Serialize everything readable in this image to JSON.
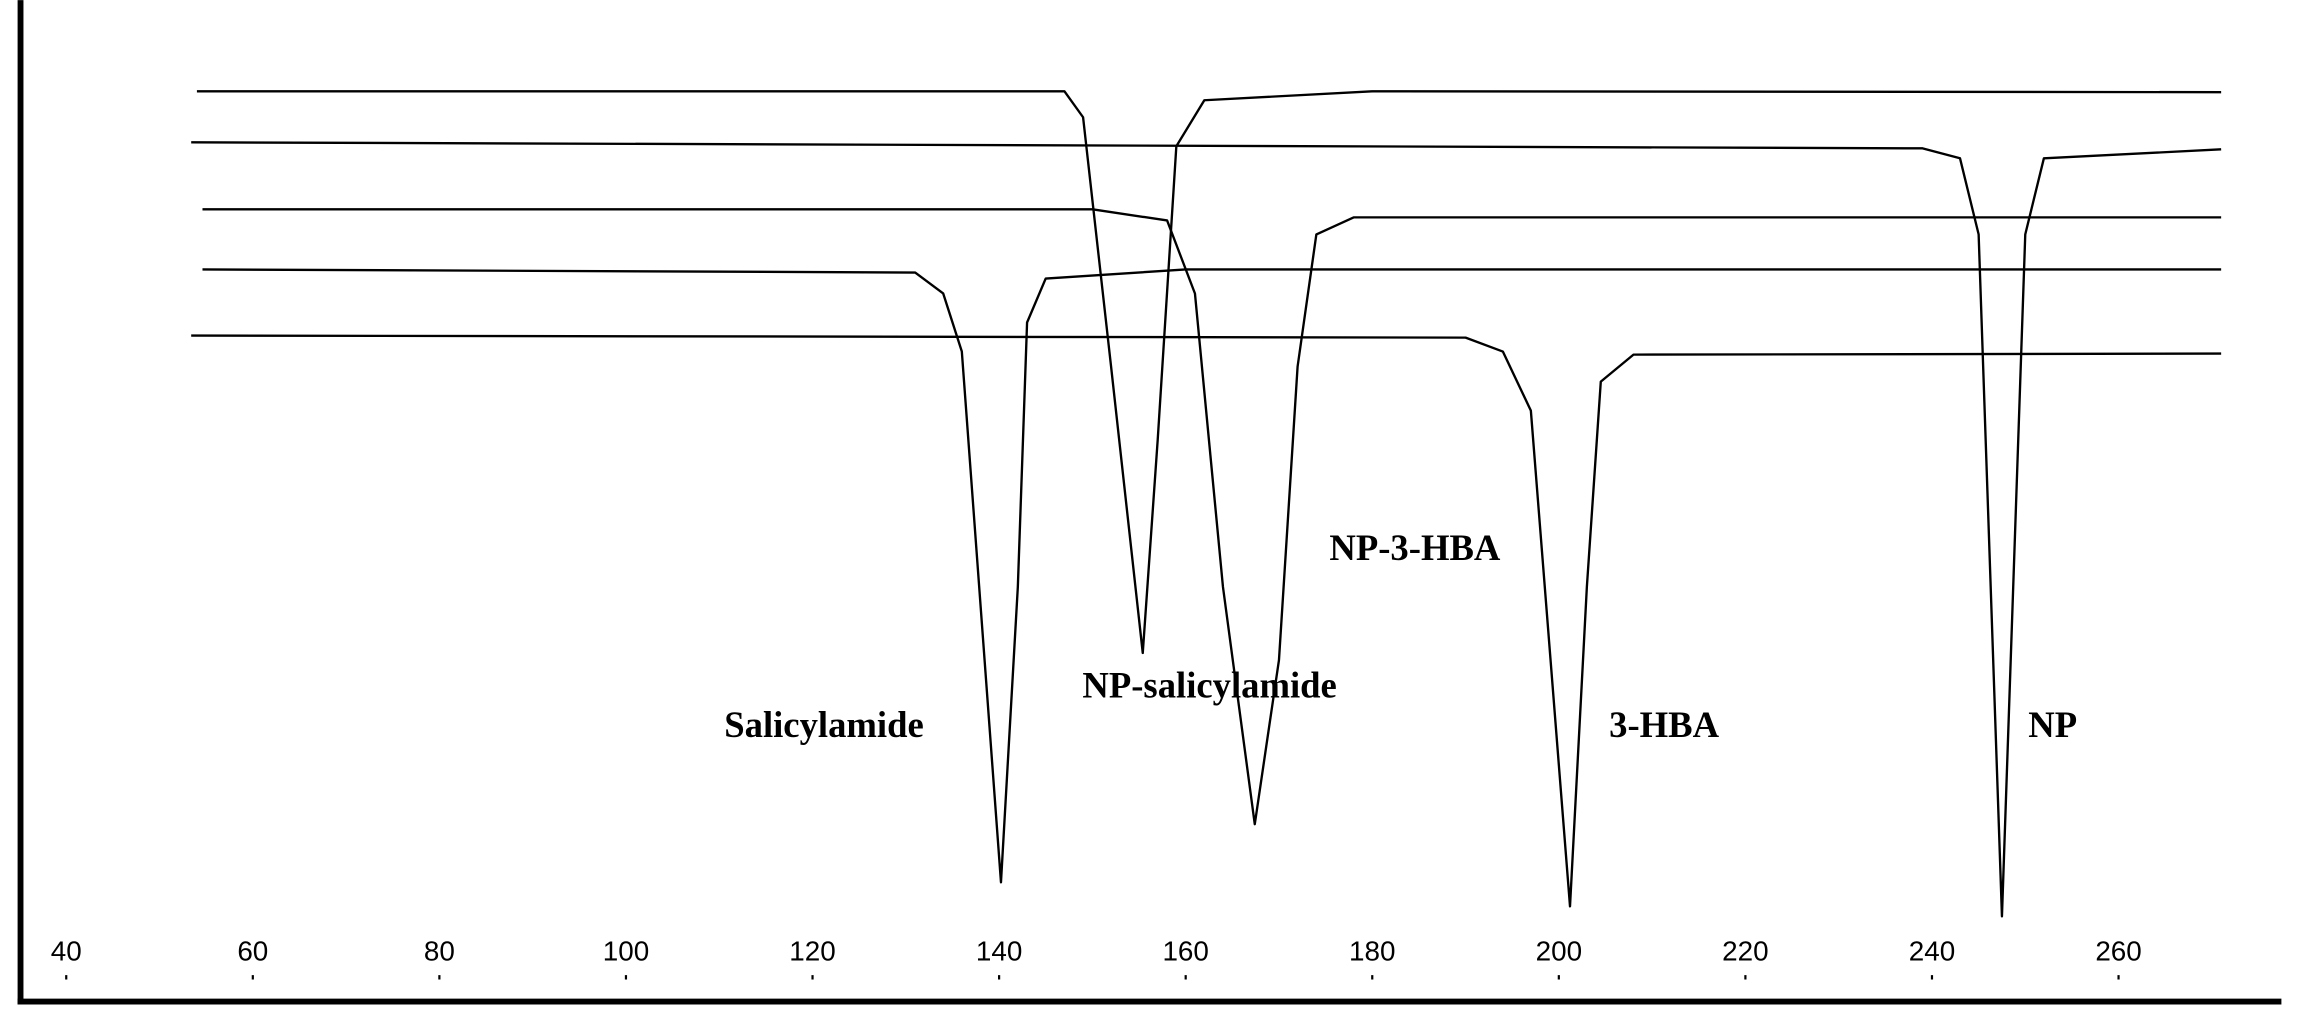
{
  "chart_data": {
    "type": "line",
    "xlim": [
      35.1,
      277.3
    ],
    "xticks": [
      40,
      60,
      80,
      100,
      120,
      140,
      160,
      180,
      200,
      220,
      240,
      260
    ],
    "ylim": [
      0,
      100
    ],
    "series": [
      {
        "name": "NP-salicylamide",
        "color": "#000000",
        "x": [
          54,
          147,
          149,
          152,
          155.4,
          157,
          159,
          162,
          180,
          271
        ],
        "values": [
          90.9,
          90.9,
          88.3,
          63.4,
          34.8,
          56.1,
          85.4,
          90.0,
          90.9,
          90.8
        ]
      },
      {
        "name": "NP",
        "color": "#000000",
        "x": [
          53.4,
          239,
          243,
          245,
          247.5,
          250,
          252,
          271
        ],
        "values": [
          85.8,
          85.2,
          84.2,
          76.6,
          8.5,
          76.6,
          84.2,
          85.1
        ]
      },
      {
        "name": "NP-3-HBA",
        "color": "#000000",
        "x": [
          54.6,
          150,
          158,
          161,
          164,
          167.4,
          170,
          172,
          174,
          178,
          271
        ],
        "values": [
          79.1,
          79.1,
          78.0,
          70.7,
          41.4,
          17.7,
          34.1,
          63.4,
          76.6,
          78.3,
          78.3
        ]
      },
      {
        "name": "Salicylamide",
        "color": "#000000",
        "x": [
          54.6,
          131,
          134,
          136,
          140.2,
          142,
          143,
          145,
          160,
          271
        ],
        "values": [
          73.1,
          72.8,
          70.7,
          64.9,
          11.9,
          41.4,
          67.8,
          72.2,
          73.1,
          73.1
        ]
      },
      {
        "name": "3-HBA",
        "color": "#000000",
        "x": [
          53.4,
          190,
          194,
          197,
          201.2,
          203,
          204.5,
          208,
          271
        ],
        "values": [
          66.5,
          66.3,
          64.9,
          59.0,
          9.5,
          41.4,
          61.9,
          64.6,
          64.7
        ]
      }
    ]
  }
}
